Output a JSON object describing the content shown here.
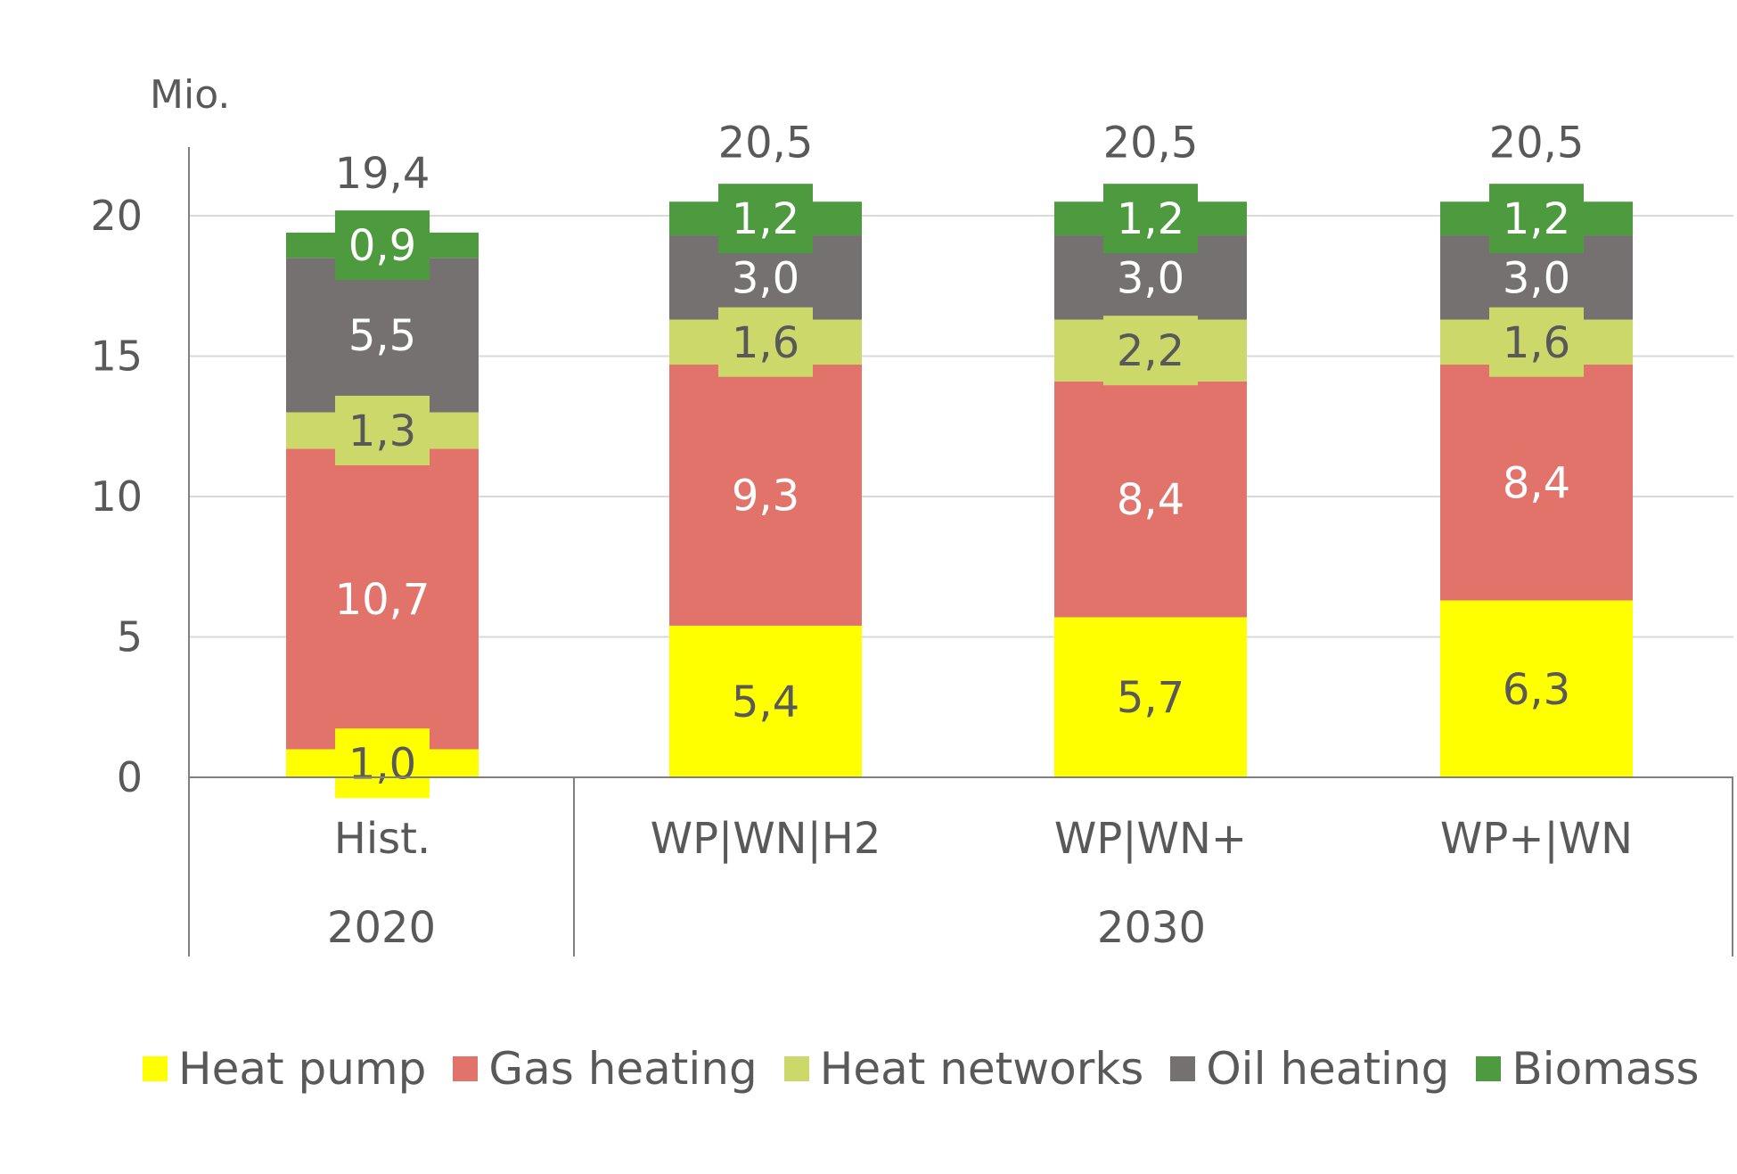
{
  "chart_data": {
    "type": "bar",
    "stacked": true,
    "unit_label": "Mio.",
    "y_ticks": [
      "0",
      "5",
      "10",
      "15",
      "20"
    ],
    "ylim": [
      0,
      22.5
    ],
    "grid": true,
    "categories": [
      "Hist.",
      "WP|WN|H2",
      "WP|WN+",
      "WP+|WN"
    ],
    "groups": [
      {
        "label": "2020",
        "categories": [
          "Hist."
        ]
      },
      {
        "label": "2030",
        "categories": [
          "WP|WN|H2",
          "WP|WN+",
          "WP+|WN"
        ]
      }
    ],
    "series": [
      {
        "name": "Heat pump",
        "color": "#FFFF00",
        "label_color": "#595959",
        "label_bg": true,
        "values": [
          1.0,
          5.4,
          5.7,
          6.3
        ],
        "labels": [
          "1,0",
          "5,4",
          "5,7",
          "6,3"
        ]
      },
      {
        "name": "Gas heating",
        "color": "#E2736B",
        "label_color": "#ffffff",
        "label_bg": false,
        "values": [
          10.7,
          9.3,
          8.4,
          8.4
        ],
        "labels": [
          "10,7",
          "9,3",
          "8,4",
          "8,4"
        ]
      },
      {
        "name": "Heat networks",
        "color": "#CDD86B",
        "label_color": "#595959",
        "label_bg": true,
        "values": [
          1.3,
          1.6,
          2.2,
          1.6
        ],
        "labels": [
          "1,3",
          "1,6",
          "2,2",
          "1,6"
        ]
      },
      {
        "name": "Oil heating",
        "color": "#767171",
        "label_color": "#ffffff",
        "label_bg": false,
        "values": [
          5.5,
          3.0,
          3.0,
          3.0
        ],
        "labels": [
          "5,5",
          "3,0",
          "3,0",
          "3,0"
        ]
      },
      {
        "name": "Biomass",
        "color": "#4E9A3F",
        "label_color": "#ffffff",
        "label_bg": true,
        "values": [
          0.9,
          1.2,
          1.2,
          1.2
        ],
        "labels": [
          "0,9",
          "1,2",
          "1,2",
          "1,2"
        ]
      }
    ],
    "totals": [
      "19,4",
      "20,5",
      "20,5",
      "20,5"
    ],
    "legend_position": "bottom"
  }
}
